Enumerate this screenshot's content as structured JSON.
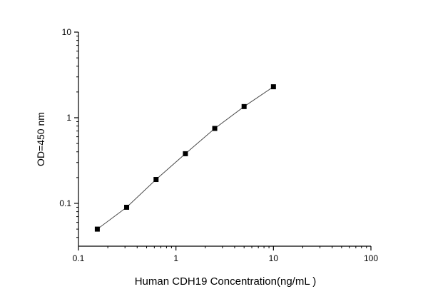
{
  "chart_data": {
    "type": "scatter",
    "x": [
      0.156,
      0.312,
      0.625,
      1.25,
      2.5,
      5,
      10
    ],
    "y": [
      0.05,
      0.09,
      0.19,
      0.38,
      0.75,
      1.35,
      2.3
    ],
    "xlabel": "Human CDH19 Concentration(ng/mL )",
    "ylabel": "OD=450 nm",
    "xscale": "log",
    "yscale": "log",
    "xlim": [
      0.1,
      100
    ],
    "ylim": [
      0.0316,
      10
    ],
    "x_tick_values": [
      0.1,
      1,
      10,
      100
    ],
    "x_tick_labels": [
      "0.1",
      "1",
      "10",
      "100"
    ],
    "y_tick_values": [
      0.1,
      1,
      10
    ],
    "y_tick_labels": [
      "0.1",
      "1",
      "10"
    ],
    "grid": false,
    "legend": false,
    "marker": "square",
    "marker_color": "#000000",
    "line_color": "#4a4a4a",
    "axis_color": "#000000",
    "background_color": "#ffffff"
  }
}
